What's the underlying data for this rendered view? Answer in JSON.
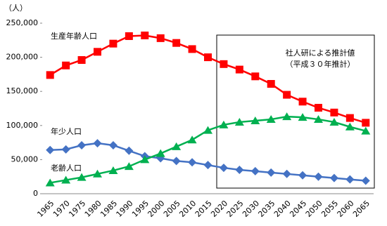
{
  "chart_data": {
    "type": "line",
    "y_label": "（人）",
    "categories": [
      "1965",
      "1970",
      "1975",
      "1980",
      "1985",
      "1990",
      "1995",
      "2000",
      "2005",
      "2010",
      "2015",
      "2020",
      "2025",
      "2030",
      "2035",
      "2040",
      "2045",
      "2050",
      "2055",
      "2060",
      "2065"
    ],
    "ylim": [
      0,
      250000
    ],
    "yticks": [
      {
        "value": 0,
        "label": "0"
      },
      {
        "value": 50000,
        "label": "50,000"
      },
      {
        "value": 100000,
        "label": "100,000"
      },
      {
        "value": 150000,
        "label": "150,000"
      },
      {
        "value": 200000,
        "label": "200,000"
      },
      {
        "value": 250000,
        "label": "250,000"
      }
    ],
    "series": [
      {
        "name": "生産年齢人口",
        "color": "#ff0000",
        "marker": "square",
        "values": [
          174000,
          188000,
          196000,
          208000,
          220000,
          231000,
          232000,
          228000,
          221000,
          212000,
          200000,
          190000,
          182000,
          172000,
          161000,
          145000,
          135000,
          126000,
          119000,
          111000,
          104000
        ]
      },
      {
        "name": "年少人口",
        "color": "#4472c4",
        "marker": "diamond",
        "values": [
          64000,
          65000,
          71000,
          74000,
          71000,
          63000,
          55000,
          52000,
          48000,
          46000,
          42000,
          38000,
          35000,
          33000,
          31000,
          29000,
          27000,
          25000,
          23000,
          21000,
          19000
        ]
      },
      {
        "name": "老齢人口",
        "color": "#00b050",
        "marker": "triangle",
        "values": [
          16000,
          20000,
          24000,
          29000,
          34000,
          40000,
          50000,
          59000,
          69000,
          79000,
          93000,
          101000,
          105000,
          107000,
          109000,
          113000,
          112000,
          109000,
          105000,
          98000,
          92000
        ]
      }
    ],
    "annotations": [
      "社人研による推計値",
      "（平成３０年推計）"
    ]
  }
}
